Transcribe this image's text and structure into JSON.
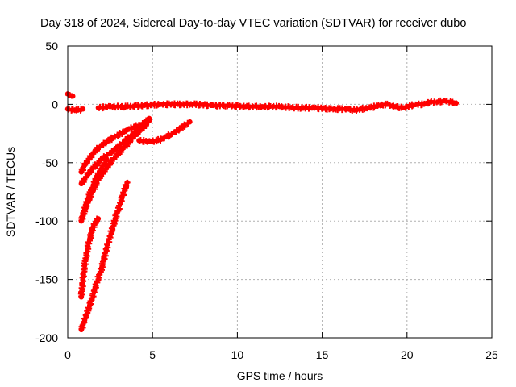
{
  "chart_data": {
    "type": "scatter",
    "title": "Day 318 of 2024, Sidereal Day-to-day VTEC variation (SDTVAR) for receiver dubo",
    "xlabel": "GPS time / hours",
    "ylabel": "SDTVAR / TECUs",
    "xlim": [
      0,
      25
    ],
    "ylim": [
      -200,
      50
    ],
    "xticks": [
      0,
      5,
      10,
      15,
      20,
      25
    ],
    "yticks": [
      -200,
      -150,
      -100,
      -50,
      0,
      50
    ],
    "xtick_labels": [
      "0",
      "5",
      "10",
      "15",
      "20",
      "25"
    ],
    "ytick_labels": [
      "-200",
      "-150",
      "-100",
      "-50",
      "0",
      "50"
    ],
    "grid": true,
    "series_color": "#ff0000",
    "series": [
      {
        "name": "main",
        "x": [
          1.8,
          2.5,
          3.5,
          4.5,
          5.5,
          6.5,
          7.5,
          8.5,
          9.5,
          10.5,
          11.5,
          12.5,
          13.5,
          14.5,
          15.5,
          16.0,
          16.5,
          16.9,
          17.3,
          17.8,
          18.3,
          18.8,
          19.3,
          19.8,
          20.2,
          20.6,
          21.0,
          21.4,
          21.8,
          22.2,
          22.6,
          22.9
        ],
        "y": [
          -3,
          -2,
          -2,
          -1,
          0,
          0,
          0,
          -1,
          -1,
          -2,
          -2,
          -2,
          -3,
          -3,
          -4,
          -4,
          -4,
          -5,
          -4,
          -3,
          -1,
          0,
          -2,
          -3,
          -1,
          0,
          0,
          2,
          2,
          3,
          2,
          1
        ]
      },
      {
        "name": "start",
        "x": [
          0.0,
          0.1,
          0.3
        ],
        "y": [
          9,
          8,
          7
        ]
      },
      {
        "name": "start2",
        "x": [
          0.0,
          0.3,
          0.6,
          0.9
        ],
        "y": [
          -4,
          -5,
          -5,
          -4
        ]
      },
      {
        "name": "arc-1",
        "x": [
          0.8,
          1.0,
          1.3,
          1.6,
          2.0,
          2.5,
          3.0,
          3.5,
          4.0,
          4.5,
          4.8
        ],
        "y": [
          -58,
          -52,
          -46,
          -40,
          -35,
          -30,
          -26,
          -22,
          -19,
          -16,
          -13
        ]
      },
      {
        "name": "arc-2",
        "x": [
          0.8,
          1.2,
          1.6,
          2.0,
          2.5,
          3.0,
          3.5,
          4.0,
          4.5,
          4.8
        ],
        "y": [
          -68,
          -60,
          -53,
          -47,
          -42,
          -36,
          -30,
          -24,
          -18,
          -14
        ]
      },
      {
        "name": "arc-3",
        "x": [
          0.8,
          1.0,
          1.3,
          1.6,
          2.0,
          2.5,
          3.0,
          3.5,
          4.0,
          4.5,
          4.8
        ],
        "y": [
          -100,
          -90,
          -80,
          -70,
          -60,
          -50,
          -42,
          -34,
          -26,
          -19,
          -12
        ]
      },
      {
        "name": "arc-4",
        "x": [
          0.9,
          1.1,
          1.3,
          1.5,
          1.7,
          2.0,
          2.3
        ],
        "y": [
          -96,
          -85,
          -77,
          -70,
          -62,
          -55,
          -47
        ]
      },
      {
        "name": "arc-5",
        "x": [
          0.8,
          0.9,
          1.0,
          1.15,
          1.3,
          1.5,
          1.7,
          1.8
        ],
        "y": [
          -165,
          -150,
          -138,
          -125,
          -115,
          -105,
          -100,
          -98
        ]
      },
      {
        "name": "arc-6",
        "x": [
          0.8,
          1.0,
          1.3,
          1.6,
          2.0,
          2.4,
          2.8,
          3.2,
          3.5
        ],
        "y": [
          -193,
          -185,
          -172,
          -158,
          -140,
          -118,
          -98,
          -80,
          -67
        ]
      },
      {
        "name": "arc-7",
        "x": [
          4.2,
          4.8,
          5.3,
          5.8,
          6.3,
          6.8,
          7.2
        ],
        "y": [
          -31,
          -32,
          -31,
          -28,
          -24,
          -19,
          -15
        ]
      }
    ]
  }
}
